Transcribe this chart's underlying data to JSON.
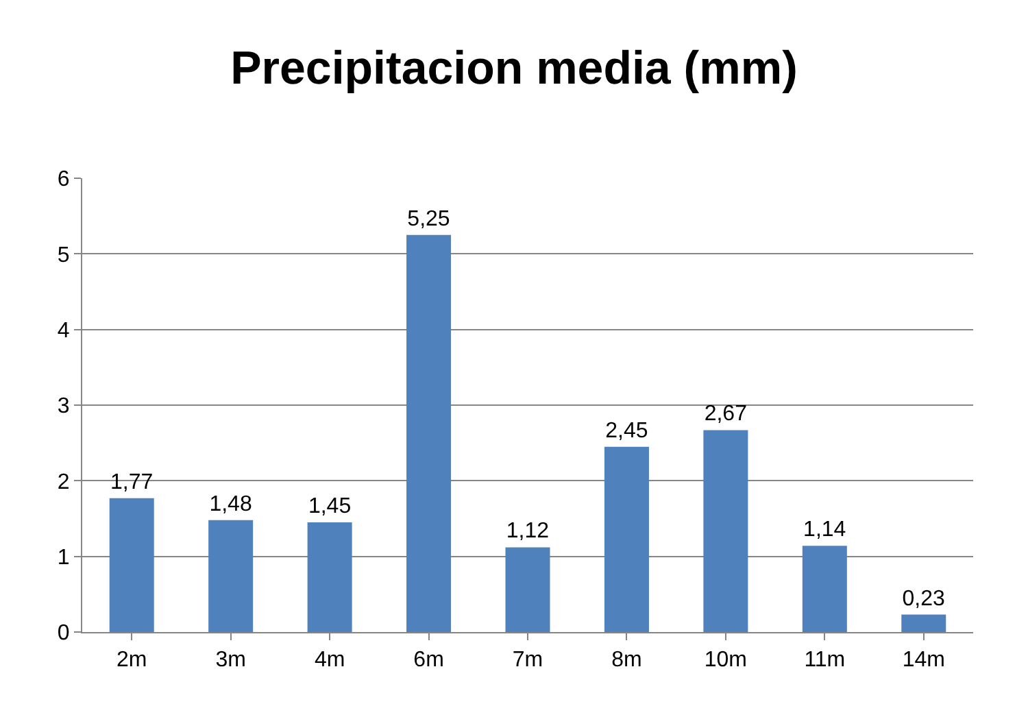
{
  "chart_data": {
    "type": "bar",
    "title": "Precipitacion media (mm)",
    "categories": [
      "2m",
      "3m",
      "4m",
      "6m",
      "7m",
      "8m",
      "10m",
      "11m",
      "14m"
    ],
    "values": [
      1.77,
      1.48,
      1.45,
      5.25,
      1.12,
      2.45,
      2.67,
      1.14,
      0.23
    ],
    "value_labels": [
      "1,77",
      "1,48",
      "1,45",
      "5,25",
      "1,12",
      "2,45",
      "2,67",
      "1,14",
      "0,23"
    ],
    "color": "#4f81bd",
    "ylim": [
      0,
      6
    ],
    "yticks": [
      0,
      1,
      2,
      3,
      4,
      5,
      6
    ],
    "grid": "y",
    "legend": false
  }
}
